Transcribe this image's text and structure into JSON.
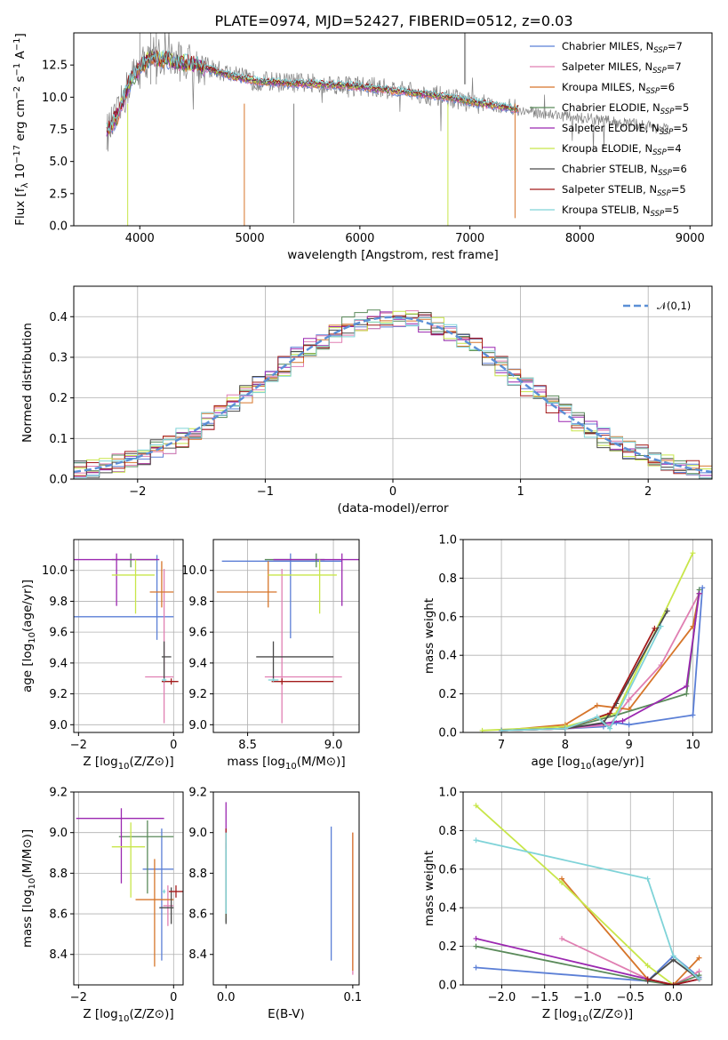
{
  "title": "PLATE=0974, MJD=52427, FIBERID=0512, z=0.03",
  "series_names": [
    "Chabrier MILES",
    "Salpeter MILES",
    "Kroupa MILES",
    "Chabrier ELODIE",
    "Salpeter ELODIE",
    "Kroupa ELODIE",
    "Chabrier STELIB",
    "Salpeter STELIB",
    "Kroupa STELIB"
  ],
  "legend_nssp": [
    "7",
    "7",
    "6",
    "5",
    "5",
    "4",
    "6",
    "5",
    "5"
  ],
  "legend_nssp_prefix": "N",
  "legend_nssp_sub": "SSP",
  "legend_nssp_eq": "=",
  "colors": [
    "#5b7fd6",
    "#e07fb2",
    "#d6752a",
    "#5a8a5a",
    "#9b27b0",
    "#c8e64a",
    "#4a4a4a",
    "#a31b1b",
    "#7fd3d8"
  ],
  "chart_data": [
    {
      "id": "spectrum",
      "type": "line",
      "title": "PLATE=0974, MJD=52427, FIBERID=0512, z=0.03",
      "xlabel": "wavelength [Angstrom, rest frame]",
      "ylabel": "Flux [f_λ 10^-17 erg cm^-2 s^-1 A^-1]",
      "xlim": [
        3400,
        9200
      ],
      "ylim": [
        0,
        15
      ],
      "xticks": [
        4000,
        5000,
        6000,
        7000,
        8000,
        9000
      ],
      "yticks": [
        "0.0",
        "2.5",
        "5.0",
        "7.5",
        "10.0",
        "12.5"
      ],
      "legend_position": "upper-right",
      "data_x": [
        3700,
        3750,
        3800,
        3850,
        3900,
        3950,
        4000,
        4100,
        4200,
        4300,
        4500,
        4700,
        4900,
        5000,
        5200,
        5500,
        5800,
        6000,
        6200,
        6400,
        6600,
        6800,
        7000,
        7200,
        7400,
        7600,
        7800,
        8000,
        8200,
        8400,
        8600,
        8800
      ],
      "data_y": [
        7.2,
        7.8,
        8.5,
        9.8,
        11.0,
        11.8,
        12.2,
        13.4,
        13.0,
        12.9,
        12.6,
        12.1,
        11.6,
        11.3,
        11.2,
        11.1,
        11.0,
        10.9,
        10.7,
        10.5,
        10.2,
        10.0,
        9.6,
        9.3,
        9.0,
        8.8,
        8.6,
        8.4,
        8.2,
        8.0,
        7.8,
        7.5
      ],
      "model_x": [
        3700,
        3800,
        3900,
        4000,
        4100,
        4300,
        4500,
        4700,
        4900,
        5100,
        5300,
        5600,
        5900,
        6200,
        6500,
        6800,
        7100,
        7400
      ],
      "model_y": [
        7.3,
        8.6,
        11.0,
        12.3,
        13.1,
        12.8,
        12.5,
        12.0,
        11.5,
        11.2,
        11.1,
        11.0,
        10.9,
        10.6,
        10.3,
        10.0,
        9.5,
        9.1
      ]
    },
    {
      "id": "residuals",
      "type": "line",
      "xlabel": "(data-model)/error",
      "ylabel": "Normed distribution",
      "xlim": [
        -2.5,
        2.5
      ],
      "ylim": [
        0,
        0.475
      ],
      "xticks": [
        -2,
        -1,
        0,
        1,
        2
      ],
      "yticks": [
        "0.0",
        "0.1",
        "0.2",
        "0.3",
        "0.4"
      ],
      "gaussian_label": "𝒩(0,1)",
      "legend_position": "upper-right",
      "grid": true
    },
    {
      "id": "age-vs-Z",
      "type": "scatter",
      "xlabel": "Z [log10(Z/Z⊙)]",
      "ylabel": "age [log10(age/yr)]",
      "xlim": [
        -2.1,
        0.2
      ],
      "ylim": [
        8.95,
        10.2
      ],
      "xticks": [
        "−2",
        "0"
      ],
      "xtick_values": [
        -2,
        0
      ],
      "yticks": [
        "9.0",
        "9.2",
        "9.4",
        "9.6",
        "9.8",
        "10.0"
      ],
      "ytick_values": [
        9.0,
        9.2,
        9.4,
        9.6,
        9.8,
        10.0
      ],
      "grid": true,
      "points": [
        {
          "x": -0.35,
          "y": 9.7,
          "xerr": [
            1.8,
            0.35
          ],
          "yerr": [
            0.15,
            0.4
          ]
        },
        {
          "x": -0.2,
          "y": 9.31,
          "xerr": [
            0.4,
            0.2
          ],
          "yerr": [
            0.3,
            0.7
          ]
        },
        {
          "x": -0.25,
          "y": 9.86,
          "xerr": [
            0.25,
            0.25
          ],
          "yerr": [
            0.1,
            0.2
          ]
        },
        {
          "x": -0.9,
          "y": 10.07,
          "xerr": [
            0.4,
            0.55
          ],
          "yerr": [
            0.05,
            0.04
          ]
        },
        {
          "x": -1.2,
          "y": 10.07,
          "xerr": [
            0.9,
            0.9
          ],
          "yerr": [
            0.3,
            0.04
          ]
        },
        {
          "x": -0.8,
          "y": 9.97,
          "xerr": [
            0.5,
            0.4
          ],
          "yerr": [
            0.25,
            0.1
          ]
        },
        {
          "x": -0.2,
          "y": 9.44,
          "xerr": [
            0.05,
            0.15
          ],
          "yerr": [
            0.15,
            0.1
          ]
        },
        {
          "x": -0.05,
          "y": 9.28,
          "xerr": [
            0.2,
            0.15
          ],
          "yerr": [
            0.02,
            0.02
          ]
        },
        {
          "x": -0.2,
          "y": 9.29,
          "xerr": [
            0.05,
            0.05
          ],
          "yerr": [
            0.01,
            0.01
          ]
        }
      ]
    },
    {
      "id": "age-vs-mass",
      "type": "scatter",
      "xlabel": "mass [log10(M/M⊙)]",
      "ylabel": "",
      "xlim": [
        8.3,
        9.15
      ],
      "ylim": [
        8.95,
        10.2
      ],
      "xticks": [
        "8.5",
        "9.0"
      ],
      "xtick_values": [
        8.5,
        9.0
      ],
      "yticks": [
        "9.0",
        "9.2",
        "9.4",
        "9.6",
        "9.8",
        "10.0"
      ],
      "ytick_values": [
        9.0,
        9.2,
        9.4,
        9.6,
        9.8,
        10.0
      ],
      "grid": true,
      "points": [
        {
          "x": 8.75,
          "y": 10.06,
          "xerr": [
            0.4,
            0.3
          ],
          "yerr": [
            0.5,
            0.05
          ]
        },
        {
          "x": 8.7,
          "y": 9.31,
          "xerr": [
            0.1,
            0.35
          ],
          "yerr": [
            0.3,
            0.7
          ]
        },
        {
          "x": 8.62,
          "y": 9.86,
          "xerr": [
            0.3,
            0.05
          ],
          "yerr": [
            0.1,
            0.2
          ]
        },
        {
          "x": 8.9,
          "y": 10.07,
          "xerr": [
            0.3,
            0.05
          ],
          "yerr": [
            0.05,
            0.04
          ]
        },
        {
          "x": 9.05,
          "y": 10.07,
          "xerr": [
            0.4,
            0.15
          ],
          "yerr": [
            0.3,
            0.04
          ]
        },
        {
          "x": 8.92,
          "y": 9.97,
          "xerr": [
            0.3,
            0.1
          ],
          "yerr": [
            0.25,
            0.1
          ]
        },
        {
          "x": 8.65,
          "y": 9.44,
          "xerr": [
            0.1,
            0.35
          ],
          "yerr": [
            0.15,
            0.1
          ]
        },
        {
          "x": 8.7,
          "y": 9.28,
          "xerr": [
            0.06,
            0.3
          ],
          "yerr": [
            0.02,
            0.02
          ]
        },
        {
          "x": 8.65,
          "y": 9.29,
          "xerr": [
            0.03,
            0.03
          ],
          "yerr": [
            0.01,
            0.01
          ]
        }
      ]
    },
    {
      "id": "mass-weight-vs-age",
      "type": "line",
      "xlabel": "age [log10(age/yr)]",
      "ylabel": "mass weight",
      "xlim": [
        6.4,
        10.3
      ],
      "ylim": [
        0,
        1.0
      ],
      "xticks": [
        "7",
        "8",
        "9",
        "10"
      ],
      "xtick_values": [
        7,
        8,
        9,
        10
      ],
      "yticks": [
        "0.0",
        "0.2",
        "0.4",
        "0.6",
        "0.8",
        "1.0"
      ],
      "ytick_values": [
        0,
        0.2,
        0.4,
        0.6,
        0.8,
        1.0
      ],
      "grid": true,
      "series": [
        {
          "x": [
            7.0,
            8.0,
            8.6,
            8.8,
            9.0,
            10.0,
            10.15
          ],
          "y": [
            0.01,
            0.02,
            0.03,
            0.05,
            0.04,
            0.09,
            0.75
          ]
        },
        {
          "x": [
            7.0,
            8.0,
            8.7,
            9.0,
            9.5,
            10.1
          ],
          "y": [
            0.01,
            0.02,
            0.04,
            0.17,
            0.35,
            0.72
          ]
        },
        {
          "x": [
            7.0,
            8.0,
            8.5,
            9.0,
            10.0,
            10.1
          ],
          "y": [
            0.01,
            0.04,
            0.14,
            0.12,
            0.55,
            0.72
          ]
        },
        {
          "x": [
            7.0,
            8.0,
            8.8,
            9.9,
            10.1
          ],
          "y": [
            0.01,
            0.02,
            0.09,
            0.2,
            0.74
          ]
        },
        {
          "x": [
            7.0,
            8.0,
            8.9,
            9.9,
            10.1
          ],
          "y": [
            0.01,
            0.02,
            0.06,
            0.24,
            0.72
          ]
        },
        {
          "x": [
            6.7,
            8.0,
            8.8,
            10.0
          ],
          "y": [
            0.01,
            0.03,
            0.1,
            0.93
          ]
        },
        {
          "x": [
            7.0,
            8.0,
            8.6,
            8.8,
            9.6
          ],
          "y": [
            0.01,
            0.02,
            0.05,
            0.15,
            0.63
          ]
        },
        {
          "x": [
            7.0,
            8.0,
            8.7,
            9.4
          ],
          "y": [
            0.01,
            0.02,
            0.1,
            0.54
          ]
        },
        {
          "x": [
            7.0,
            8.0,
            8.5,
            8.7,
            9.5
          ],
          "y": [
            0.01,
            0.02,
            0.08,
            0.02,
            0.55
          ]
        }
      ]
    },
    {
      "id": "mass-vs-Z",
      "type": "scatter",
      "xlabel": "Z [log10(Z/Z⊙)]",
      "ylabel": "mass [log10(M/M⊙)]",
      "xlim": [
        -2.1,
        0.2
      ],
      "ylim": [
        8.25,
        9.2
      ],
      "xticks": [
        "−2",
        "0"
      ],
      "xtick_values": [
        -2,
        0
      ],
      "yticks": [
        "8.4",
        "8.6",
        "8.8",
        "9.0",
        "9.2"
      ],
      "ytick_values": [
        8.4,
        8.6,
        8.8,
        9.0,
        9.2
      ],
      "grid": true,
      "points": [
        {
          "x": -0.25,
          "y": 8.82,
          "xerr": [
            0.4,
            0.25
          ],
          "yerr": [
            0.45,
            0.2
          ]
        },
        {
          "x": -0.12,
          "y": 8.64,
          "xerr": [
            0.1,
            0.12
          ],
          "yerr": [
            0.1,
            0.1
          ]
        },
        {
          "x": -0.4,
          "y": 8.67,
          "xerr": [
            0.4,
            0.4
          ],
          "yerr": [
            0.33,
            0.2
          ]
        },
        {
          "x": -0.55,
          "y": 8.98,
          "xerr": [
            0.6,
            0.55
          ],
          "yerr": [
            0.28,
            0.08
          ]
        },
        {
          "x": -1.1,
          "y": 9.07,
          "xerr": [
            0.95,
            0.9
          ],
          "yerr": [
            0.32,
            0.05
          ]
        },
        {
          "x": -0.9,
          "y": 8.93,
          "xerr": [
            0.4,
            0.3
          ],
          "yerr": [
            0.25,
            0.12
          ]
        },
        {
          "x": -0.05,
          "y": 8.63,
          "xerr": [
            0.25,
            0.05
          ],
          "yerr": [
            0.08,
            0.1
          ]
        },
        {
          "x": 0.05,
          "y": 8.71,
          "xerr": [
            0.15,
            0.15
          ],
          "yerr": [
            0.03,
            0.03
          ]
        },
        {
          "x": -0.2,
          "y": 8.71,
          "xerr": [
            0.03,
            0.03
          ],
          "yerr": [
            0.01,
            0.01
          ]
        }
      ]
    },
    {
      "id": "mass-vs-EBV",
      "type": "scatter",
      "xlabel": "E(B-V)",
      "ylabel": "",
      "xlim": [
        -0.01,
        0.105
      ],
      "ylim": [
        8.25,
        9.2
      ],
      "xticks": [
        "0.0",
        "0.1"
      ],
      "xtick_values": [
        0,
        0.1
      ],
      "yticks": [
        "8.4",
        "8.6",
        "8.8",
        "9.0",
        "9.2"
      ],
      "ytick_values": [
        8.4,
        8.6,
        8.8,
        9.0,
        9.2
      ],
      "grid": false,
      "points": [
        {
          "x": 0.083,
          "y": 8.7,
          "xerr": [
            0,
            0
          ],
          "yerr": [
            0.33,
            0.33
          ]
        },
        {
          "x": 0.1,
          "y": 8.65,
          "xerr": [
            0,
            0
          ],
          "yerr": [
            0.35,
            0.35
          ]
        },
        {
          "x": 0.1,
          "y": 8.7,
          "xerr": [
            0,
            0
          ],
          "yerr": [
            0.38,
            0.3
          ]
        },
        {
          "x": 0.0,
          "y": 8.78,
          "xerr": [
            0,
            0
          ],
          "yerr": [
            0.22,
            0.22
          ]
        },
        {
          "x": 0.0,
          "y": 8.95,
          "xerr": [
            0,
            0
          ],
          "yerr": [
            0.25,
            0.2
          ]
        },
        {
          "x": 0.0,
          "y": 8.8,
          "xerr": [
            0,
            0
          ],
          "yerr": [
            0.22,
            0.2
          ]
        },
        {
          "x": 0.0,
          "y": 8.85,
          "xerr": [
            0,
            0
          ],
          "yerr": [
            0.3,
            0.1
          ]
        },
        {
          "x": 0.0,
          "y": 8.97,
          "xerr": [
            0,
            0
          ],
          "yerr": [
            0.05,
            0.05
          ]
        },
        {
          "x": 0.0,
          "y": 8.85,
          "xerr": [
            0,
            0
          ],
          "yerr": [
            0.25,
            0.15
          ]
        }
      ]
    },
    {
      "id": "mass-weight-vs-Z",
      "type": "line",
      "xlabel": "Z [log10(Z/Z⊙)]",
      "ylabel": "mass weight",
      "xlim": [
        -2.45,
        0.45
      ],
      "ylim": [
        0,
        1.0
      ],
      "xticks": [
        "−2.0",
        "−1.5",
        "−1.0",
        "−0.5",
        "0.0"
      ],
      "xtick_values": [
        -2.0,
        -1.5,
        -1.0,
        -0.5,
        0.0
      ],
      "yticks": [
        "0.0",
        "0.2",
        "0.4",
        "0.6",
        "0.8",
        "1.0"
      ],
      "ytick_values": [
        0,
        0.2,
        0.4,
        0.6,
        0.8,
        1.0
      ],
      "grid": true,
      "series": [
        {
          "x": [
            -2.3,
            -0.3,
            0.0,
            0.3
          ],
          "y": [
            0.09,
            0.02,
            0.15,
            0.04
          ]
        },
        {
          "x": [
            -1.3,
            -0.3,
            0.0,
            0.3
          ],
          "y": [
            0.24,
            0.03,
            0.0,
            0.07
          ]
        },
        {
          "x": [
            -1.3,
            -0.3,
            0.0,
            0.3
          ],
          "y": [
            0.55,
            0.03,
            0.0,
            0.14
          ]
        },
        {
          "x": [
            -2.3,
            -0.3,
            0.0,
            0.3
          ],
          "y": [
            0.2,
            0.02,
            0.0,
            0.05
          ]
        },
        {
          "x": [
            -2.3,
            -0.3,
            0.0,
            0.3
          ],
          "y": [
            0.24,
            0.03,
            0.0,
            0.03
          ]
        },
        {
          "x": [
            -2.3,
            -1.3,
            -0.3,
            0.0
          ],
          "y": [
            0.93,
            0.53,
            0.1,
            0.0
          ]
        },
        {
          "x": [
            -0.3,
            0.0,
            0.3
          ],
          "y": [
            0.02,
            0.13,
            0.03
          ]
        },
        {
          "x": [
            -0.3,
            0.0,
            0.3
          ],
          "y": [
            0.03,
            0.0,
            0.03
          ]
        },
        {
          "x": [
            -2.3,
            -0.3,
            0.0,
            0.3
          ],
          "y": [
            0.75,
            0.55,
            0.15,
            0.03
          ]
        }
      ]
    }
  ]
}
